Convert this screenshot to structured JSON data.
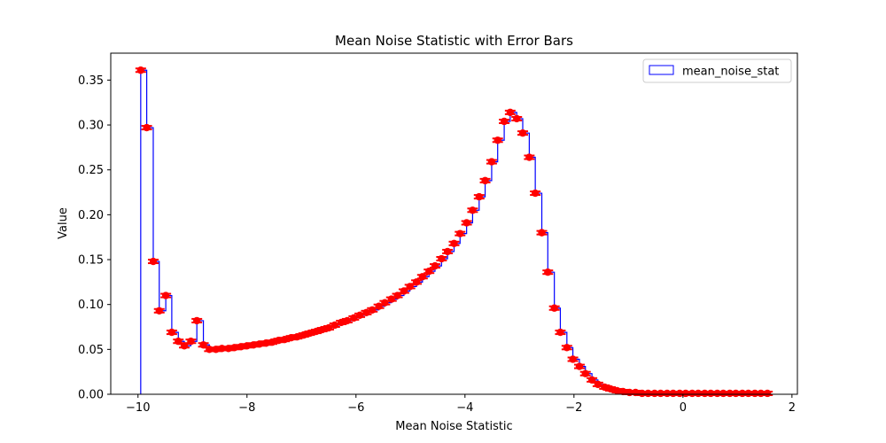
{
  "chart_data": {
    "type": "step",
    "title": "Mean Noise Statistic with Error Bars",
    "xlabel": "Mean Noise Statistic",
    "ylabel": "Value",
    "xlim": [
      -10.5,
      2.1
    ],
    "ylim": [
      0,
      0.38
    ],
    "xticks": [
      -10,
      -8,
      -6,
      -4,
      -2,
      0,
      2
    ],
    "xtick_labels": [
      "−10",
      "−8",
      "−6",
      "−4",
      "−2",
      "0",
      "2"
    ],
    "yticks": [
      0.0,
      0.05,
      0.1,
      0.15,
      0.2,
      0.25,
      0.3,
      0.35
    ],
    "ytick_labels": [
      "0.00",
      "0.05",
      "0.10",
      "0.15",
      "0.20",
      "0.25",
      "0.30",
      "0.35"
    ],
    "legend": {
      "entries": [
        "mean_noise_stat"
      ],
      "location": "upper right"
    },
    "colors": {
      "step_line": "#0000ff",
      "error_marker": "#ff0000"
    },
    "series": [
      {
        "name": "mean_noise_stat",
        "x": [
          -9.95,
          -9.84,
          -9.72,
          -9.61,
          -9.49,
          -9.38,
          -9.26,
          -9.15,
          -9.03,
          -8.92,
          -8.8,
          -8.69,
          -8.57,
          -8.46,
          -8.34,
          -8.23,
          -8.11,
          -8.0,
          -7.88,
          -7.77,
          -7.65,
          -7.54,
          -7.42,
          -7.31,
          -7.19,
          -7.08,
          -6.96,
          -6.85,
          -6.73,
          -6.62,
          -6.5,
          -6.39,
          -6.27,
          -6.16,
          -6.04,
          -5.93,
          -5.81,
          -5.7,
          -5.58,
          -5.47,
          -5.35,
          -5.24,
          -5.12,
          -5.01,
          -4.89,
          -4.78,
          -4.66,
          -4.55,
          -4.43,
          -4.32,
          -4.2,
          -4.09,
          -3.97,
          -3.86,
          -3.74,
          -3.63,
          -3.51,
          -3.4,
          -3.28,
          -3.17,
          -3.05,
          -2.94,
          -2.82,
          -2.71,
          -2.59,
          -2.48,
          -2.36,
          -2.25,
          -2.13,
          -2.02,
          -1.9,
          -1.79,
          -1.67,
          -1.56,
          -1.44,
          -1.33,
          -1.21,
          -1.1,
          -0.98,
          -0.87,
          -0.75,
          -0.64,
          -0.52,
          -0.41,
          -0.29,
          -0.18,
          -0.06,
          0.05,
          0.17,
          0.28,
          0.4,
          0.51,
          0.63,
          0.74,
          0.86,
          0.97,
          1.09,
          1.2,
          1.32,
          1.43,
          1.55
        ],
        "values": [
          0.361,
          0.297,
          0.148,
          0.093,
          0.11,
          0.069,
          0.059,
          0.054,
          0.059,
          0.082,
          0.055,
          0.05,
          0.05,
          0.051,
          0.051,
          0.052,
          0.053,
          0.054,
          0.055,
          0.056,
          0.057,
          0.058,
          0.06,
          0.061,
          0.063,
          0.064,
          0.066,
          0.068,
          0.07,
          0.072,
          0.074,
          0.077,
          0.08,
          0.082,
          0.085,
          0.088,
          0.091,
          0.094,
          0.098,
          0.102,
          0.106,
          0.11,
          0.115,
          0.12,
          0.125,
          0.131,
          0.137,
          0.143,
          0.151,
          0.159,
          0.168,
          0.179,
          0.191,
          0.205,
          0.22,
          0.238,
          0.259,
          0.283,
          0.304,
          0.314,
          0.307,
          0.291,
          0.264,
          0.224,
          0.18,
          0.136,
          0.096,
          0.069,
          0.052,
          0.039,
          0.031,
          0.023,
          0.016,
          0.011,
          0.008,
          0.006,
          0.004,
          0.003,
          0.002,
          0.002,
          0.001,
          0.001,
          0.001,
          0.001,
          0.001,
          0.001,
          0.001,
          0.001,
          0.001,
          0.001,
          0.001,
          0.001,
          0.001,
          0.001,
          0.001,
          0.001,
          0.001,
          0.001,
          0.001,
          0.001,
          0.001
        ],
        "error": 0.002
      }
    ]
  }
}
